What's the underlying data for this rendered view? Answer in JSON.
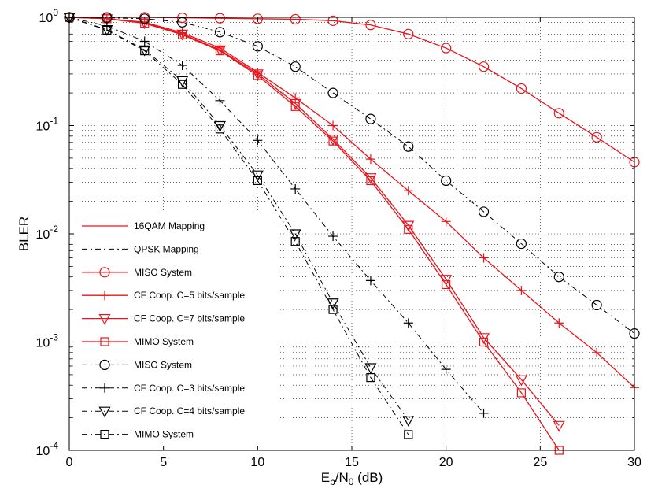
{
  "chart_data": {
    "type": "line",
    "title": "",
    "xlabel": {
      "base": "E",
      "sub1": "b",
      "mid": "/N",
      "sub2": "0",
      "tail": " (dB)"
    },
    "ylabel": "BLER",
    "xlim": [
      0,
      30
    ],
    "ylim": [
      0.0001,
      1
    ],
    "yscale": "log",
    "grid": true,
    "legend_position": "lower-left",
    "x_ticks": [
      "0",
      "5",
      "10",
      "15",
      "20",
      "25",
      "30"
    ],
    "y_ticks": [
      {
        "base": "10",
        "exp": "0"
      },
      {
        "base": "10",
        "exp": "-1"
      },
      {
        "base": "10",
        "exp": "-2"
      },
      {
        "base": "10",
        "exp": "-3"
      },
      {
        "base": "10",
        "exp": "-4"
      }
    ],
    "legend_style_entries": [
      {
        "name": "16QAM Mapping",
        "color": "#e8141b",
        "dash": "solid"
      },
      {
        "name": "QPSK Mapping",
        "color": "#000000",
        "dash": "dashdot"
      }
    ],
    "series": [
      {
        "name": "MISO System",
        "group": "16QAM",
        "color": "#e8141b",
        "dash": "solid",
        "marker": "circle",
        "x": [
          0,
          2,
          4,
          6,
          8,
          10,
          12,
          14,
          16,
          18,
          20,
          22,
          24,
          26,
          28,
          30
        ],
        "y": [
          1.0,
          1.0,
          1.0,
          0.99,
          0.98,
          0.97,
          0.96,
          0.93,
          0.85,
          0.7,
          0.52,
          0.35,
          0.22,
          0.13,
          0.078,
          0.046
        ]
      },
      {
        "name": "CF Coop. C=5 bits/sample",
        "group": "16QAM",
        "color": "#e8141b",
        "dash": "solid",
        "marker": "plus",
        "x": [
          0,
          2,
          4,
          6,
          8,
          10,
          12,
          14,
          16,
          18,
          20,
          22,
          24,
          26,
          28,
          30
        ],
        "y": [
          1.0,
          0.97,
          0.9,
          0.72,
          0.52,
          0.31,
          0.18,
          0.1,
          0.049,
          0.025,
          0.013,
          0.006,
          0.003,
          0.0015,
          0.0008,
          0.00038
        ]
      },
      {
        "name": "CF Coop. C=7 bits/sample",
        "group": "16QAM",
        "color": "#e8141b",
        "dash": "solid",
        "marker": "triangle-down",
        "x": [
          0,
          2,
          4,
          6,
          8,
          10,
          12,
          14,
          16,
          18,
          20,
          22,
          24,
          26
        ],
        "y": [
          1.0,
          0.97,
          0.89,
          0.7,
          0.5,
          0.3,
          0.16,
          0.075,
          0.033,
          0.012,
          0.0038,
          0.0011,
          0.00045,
          0.00017
        ]
      },
      {
        "name": "MIMO System",
        "group": "16QAM",
        "color": "#e8141b",
        "dash": "solid",
        "marker": "square",
        "x": [
          0,
          2,
          4,
          6,
          8,
          10,
          12,
          14,
          16,
          18,
          20,
          22,
          24,
          26
        ],
        "y": [
          1.0,
          0.97,
          0.88,
          0.69,
          0.49,
          0.29,
          0.15,
          0.072,
          0.031,
          0.011,
          0.0034,
          0.001,
          0.00034,
          0.0001
        ]
      },
      {
        "name": "MISO System",
        "group": "QPSK",
        "color": "#000000",
        "dash": "dashdot",
        "marker": "circle",
        "x": [
          0,
          2,
          4,
          6,
          8,
          10,
          12,
          14,
          16,
          18,
          20,
          22,
          24,
          26,
          28,
          30
        ],
        "y": [
          1.0,
          0.99,
          0.97,
          0.9,
          0.73,
          0.54,
          0.35,
          0.2,
          0.115,
          0.064,
          0.031,
          0.016,
          0.0081,
          0.004,
          0.0022,
          0.0012
        ]
      },
      {
        "name": "CF Coop. C=3 bits/sample",
        "group": "QPSK",
        "color": "#000000",
        "dash": "dashdot",
        "marker": "plus",
        "x": [
          0,
          2,
          4,
          6,
          8,
          10,
          12,
          14,
          16,
          18,
          20,
          22
        ],
        "y": [
          1.0,
          0.83,
          0.6,
          0.36,
          0.17,
          0.073,
          0.026,
          0.0095,
          0.0037,
          0.0015,
          0.00056,
          0.00022
        ]
      },
      {
        "name": "CF Coop. C=4 bits/sample",
        "group": "QPSK",
        "color": "#000000",
        "dash": "dashdot",
        "marker": "triangle-down",
        "x": [
          0,
          2,
          4,
          6,
          8,
          10,
          12,
          14,
          16,
          18
        ],
        "y": [
          1.0,
          0.77,
          0.5,
          0.26,
          0.1,
          0.035,
          0.01,
          0.0023,
          0.00058,
          0.00019
        ]
      },
      {
        "name": "MIMO System",
        "group": "QPSK",
        "color": "#000000",
        "dash": "dashdot",
        "marker": "square",
        "x": [
          0,
          2,
          4,
          6,
          8,
          10,
          12,
          14,
          16,
          18
        ],
        "y": [
          1.0,
          0.76,
          0.49,
          0.24,
          0.093,
          0.031,
          0.0085,
          0.002,
          0.00047,
          0.00014
        ]
      }
    ]
  }
}
